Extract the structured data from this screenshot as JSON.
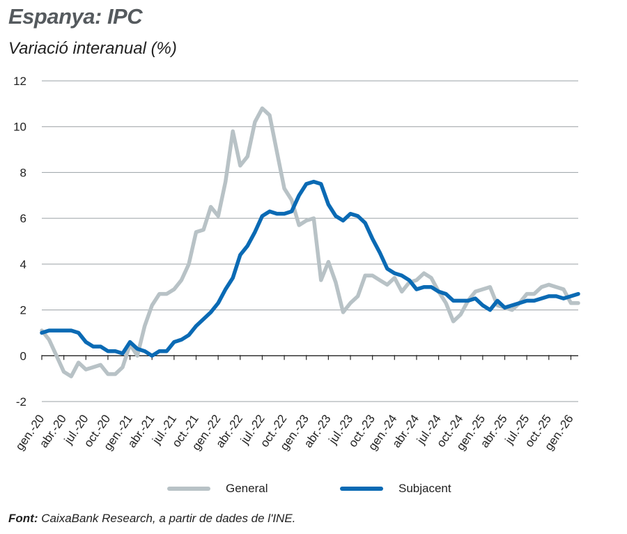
{
  "header": {
    "title": "Espanya: IPC",
    "subtitle": "Variació interanual (%)"
  },
  "footer": {
    "source_label": "Font:",
    "source_text": "CaixaBank Research, a partir de dades de l'INE."
  },
  "colors": {
    "general": "#b8c2c6",
    "subjacent": "#0a6ab4",
    "grid": "#9aa0a4",
    "axis": "#222222"
  },
  "chart_data": {
    "type": "line",
    "ylim": [
      -2,
      12
    ],
    "yticks": [
      -2,
      0,
      2,
      4,
      6,
      8,
      10,
      12
    ],
    "grid": true,
    "legend": "bottom",
    "x_tick_labels": [
      "gen.-20",
      "abr.-20",
      "jul.-20",
      "oct.-20",
      "gen.-21",
      "abr.-21",
      "jul.-21",
      "oct.-21",
      "gen.-22",
      "abr.-22",
      "jul.-22",
      "oct.-22",
      "gen.-23",
      "abr.-23",
      "jul.-23",
      "oct.-23",
      "gen.-24",
      "abr.-24",
      "jul.-24",
      "oct.-24",
      "gen.-25",
      "abr.-25",
      "jul.-25",
      "oct.-25",
      "gen.-26"
    ],
    "series": [
      {
        "name": "General",
        "values": [
          1.1,
          0.7,
          0.0,
          -0.7,
          -0.9,
          -0.3,
          -0.6,
          -0.5,
          -0.4,
          -0.8,
          -0.8,
          -0.5,
          0.5,
          0.0,
          1.3,
          2.2,
          2.7,
          2.7,
          2.9,
          3.3,
          4.0,
          5.4,
          5.5,
          6.5,
          6.1,
          7.6,
          9.8,
          8.3,
          8.7,
          10.2,
          10.8,
          10.5,
          8.9,
          7.3,
          6.8,
          5.7,
          5.9,
          6.0,
          3.3,
          4.1,
          3.2,
          1.9,
          2.3,
          2.6,
          3.5,
          3.5,
          3.3,
          3.1,
          3.4,
          2.8,
          3.2,
          3.3,
          3.6,
          3.4,
          2.8,
          2.3,
          1.5,
          1.8,
          2.4,
          2.8,
          2.9,
          3.0,
          2.2,
          2.1,
          2.0,
          2.3,
          2.7,
          2.7,
          3.0,
          3.1,
          3.0,
          2.9,
          2.3,
          2.3
        ],
        "color": "#b8c2c6"
      },
      {
        "name": "Subjacent",
        "values": [
          1.0,
          1.1,
          1.1,
          1.1,
          1.1,
          1.0,
          0.6,
          0.4,
          0.4,
          0.2,
          0.2,
          0.1,
          0.6,
          0.3,
          0.2,
          0.0,
          0.2,
          0.2,
          0.6,
          0.7,
          0.9,
          1.3,
          1.6,
          1.9,
          2.3,
          2.9,
          3.4,
          4.4,
          4.8,
          5.4,
          6.1,
          6.3,
          6.2,
          6.2,
          6.3,
          7.0,
          7.5,
          7.6,
          7.5,
          6.6,
          6.1,
          5.9,
          6.2,
          6.1,
          5.8,
          5.1,
          4.5,
          3.8,
          3.6,
          3.5,
          3.3,
          2.9,
          3.0,
          3.0,
          2.8,
          2.7,
          2.4,
          2.4,
          2.4,
          2.5,
          2.2,
          2.0,
          2.4,
          2.1,
          2.2,
          2.3,
          2.4,
          2.4,
          2.5,
          2.6,
          2.6,
          2.5,
          2.6,
          2.7
        ],
        "color": "#0a6ab4"
      }
    ]
  }
}
